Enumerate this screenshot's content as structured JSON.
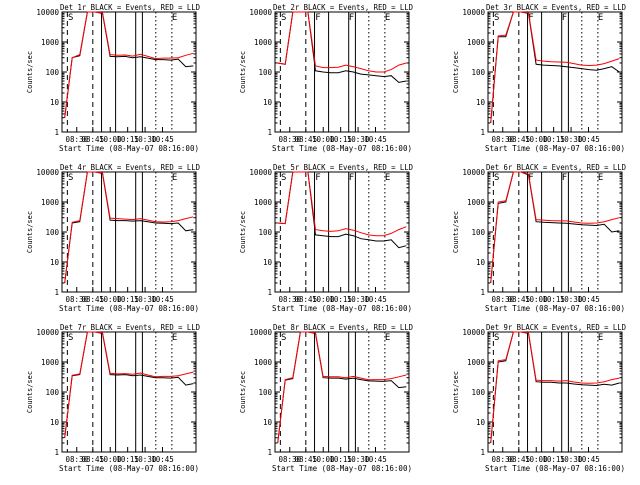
{
  "figure": {
    "panel_suffix": "BLACK = Events, RED = LLD",
    "ylabel": "Counts/sec",
    "xlabel": "Start Time (08-May-07 08:16:00)",
    "yticks": [
      "1",
      "10",
      "100",
      "1000",
      "10000"
    ],
    "xticks": [
      "08:30",
      "08:45",
      "10:00",
      "10:15",
      "10:30",
      "10:45"
    ]
  },
  "chart_data": [
    {
      "type": "line",
      "title": "Det 1r BLACK = Events, RED = LLD",
      "markers": [
        "S",
        "",
        "",
        "E"
      ],
      "xlabel": "Start Time (08-May-07 08:16:00)",
      "ylabel": "Counts/sec",
      "yscale": "log",
      "ylim": [
        1,
        10000
      ],
      "xticks": [
        "08:30",
        "08:45",
        "10:00",
        "10:15",
        "10:30",
        "10:45"
      ],
      "series": [
        {
          "name": "Events",
          "color": "#000000",
          "values": [
            3,
            300,
            350,
            12000,
            12000,
            9000,
            330,
            320,
            330,
            300,
            320,
            290,
            260,
            260,
            250,
            270,
            150,
            160
          ]
        },
        {
          "name": "LLD",
          "color": "#ff0000",
          "values": [
            3,
            300,
            380,
            12000,
            12000,
            9500,
            380,
            360,
            370,
            340,
            390,
            330,
            280,
            290,
            290,
            300,
            360,
            420
          ]
        }
      ]
    },
    {
      "type": "line",
      "title": "Det 2r BLACK = Events, RED = LLD",
      "markers": [
        "S",
        "F",
        "F",
        "E"
      ],
      "xlabel": "Start Time (08-May-07 08:16:00)",
      "ylabel": "Counts/sec",
      "yscale": "log",
      "ylim": [
        1,
        10000
      ],
      "xticks": [
        "08:30",
        "08:45",
        "10:00",
        "10:15",
        "10:30",
        "10:45"
      ],
      "series": [
        {
          "name": "Events",
          "color": "#000000",
          "values": [
            200,
            180,
            12000,
            12000,
            11000,
            110,
            100,
            95,
            95,
            110,
            100,
            85,
            80,
            75,
            70,
            75,
            45,
            50
          ]
        },
        {
          "name": "LLD",
          "color": "#ff0000",
          "values": [
            200,
            180,
            12000,
            12000,
            11000,
            160,
            140,
            140,
            145,
            170,
            150,
            130,
            110,
            100,
            100,
            120,
            170,
            200
          ]
        }
      ]
    },
    {
      "type": "line",
      "title": "Det 3r BLACK = Events, RED = LLD",
      "markers": [
        "S",
        "F",
        "F",
        "E"
      ],
      "xlabel": "Start Time (08-May-07 08:16:00)",
      "ylabel": "Counts/sec",
      "yscale": "log",
      "ylim": [
        1,
        10000
      ],
      "xticks": [
        "08:30",
        "08:45",
        "10:00",
        "10:15",
        "10:30",
        "10:45"
      ],
      "series": [
        {
          "name": "Events",
          "color": "#000000",
          "values": [
            2,
            1500,
            1500,
            12000,
            12000,
            9000,
            180,
            170,
            165,
            160,
            150,
            140,
            130,
            120,
            115,
            130,
            150,
            100
          ]
        },
        {
          "name": "LLD",
          "color": "#ff0000",
          "values": [
            2,
            1600,
            1700,
            12000,
            12000,
            9500,
            250,
            230,
            220,
            215,
            210,
            190,
            170,
            165,
            170,
            190,
            230,
            280
          ]
        }
      ]
    },
    {
      "type": "line",
      "title": "Det 4r BLACK = Events, RED = LLD",
      "markers": [
        "S",
        "",
        "",
        "E"
      ],
      "xlabel": "Start Time (08-May-07 08:16:00)",
      "ylabel": "Counts/sec",
      "yscale": "log",
      "ylim": [
        1,
        10000
      ],
      "xticks": [
        "08:30",
        "08:45",
        "10:00",
        "10:15",
        "10:30",
        "10:45"
      ],
      "series": [
        {
          "name": "Events",
          "color": "#000000",
          "values": [
            2,
            200,
            220,
            12000,
            12000,
            9000,
            250,
            240,
            240,
            230,
            240,
            220,
            200,
            195,
            190,
            200,
            110,
            120
          ]
        },
        {
          "name": "LLD",
          "color": "#ff0000",
          "values": [
            2,
            210,
            240,
            12000,
            12000,
            9500,
            290,
            280,
            270,
            260,
            280,
            250,
            220,
            215,
            220,
            240,
            280,
            320
          ]
        }
      ]
    },
    {
      "type": "line",
      "title": "Det 5r BLACK = Events, RED = LLD",
      "markers": [
        "S",
        "F",
        "F",
        "E"
      ],
      "xlabel": "Start Time (08-May-07 08:16:00)",
      "ylabel": "Counts/sec",
      "yscale": "log",
      "ylim": [
        1,
        10000
      ],
      "xticks": [
        "08:30",
        "08:45",
        "10:00",
        "10:15",
        "10:30",
        "10:45"
      ],
      "series": [
        {
          "name": "Events",
          "color": "#000000",
          "values": [
            200,
            190,
            12000,
            12000,
            11000,
            80,
            75,
            70,
            70,
            85,
            75,
            60,
            55,
            50,
            50,
            55,
            30,
            35
          ]
        },
        {
          "name": "LLD",
          "color": "#ff0000",
          "values": [
            200,
            190,
            12000,
            12000,
            11000,
            120,
            110,
            105,
            110,
            130,
            115,
            95,
            80,
            75,
            75,
            90,
            120,
            150
          ]
        }
      ]
    },
    {
      "type": "line",
      "title": "Det 6r BLACK = Events, RED = LLD",
      "markers": [
        "S",
        "F",
        "F",
        "E"
      ],
      "xlabel": "Start Time (08-May-07 08:16:00)",
      "ylabel": "Counts/sec",
      "yscale": "log",
      "ylim": [
        1,
        10000
      ],
      "xticks": [
        "08:30",
        "08:45",
        "10:00",
        "10:15",
        "10:30",
        "10:45"
      ],
      "series": [
        {
          "name": "Events",
          "color": "#000000",
          "values": [
            2,
            900,
            1000,
            12000,
            12000,
            8000,
            220,
            210,
            205,
            200,
            195,
            185,
            175,
            170,
            165,
            180,
            100,
            110
          ]
        },
        {
          "name": "LLD",
          "color": "#ff0000",
          "values": [
            2,
            1000,
            1100,
            12000,
            12000,
            8500,
            260,
            250,
            240,
            235,
            235,
            215,
            200,
            195,
            200,
            220,
            260,
            300
          ]
        }
      ]
    },
    {
      "type": "line",
      "title": "Det 7r BLACK = Events, RED = LLD",
      "markers": [
        "S",
        "",
        "",
        "E"
      ],
      "xlabel": "Start Time (08-May-07 08:16:00)",
      "ylabel": "Counts/sec",
      "yscale": "log",
      "ylim": [
        1,
        10000
      ],
      "xticks": [
        "08:30",
        "08:45",
        "10:00",
        "10:15",
        "10:30",
        "10:45"
      ],
      "series": [
        {
          "name": "Events",
          "color": "#000000",
          "values": [
            3,
            350,
            380,
            12000,
            12000,
            9000,
            380,
            370,
            380,
            350,
            370,
            330,
            300,
            300,
            290,
            310,
            170,
            190
          ]
        },
        {
          "name": "LLD",
          "color": "#ff0000",
          "values": [
            3,
            360,
            400,
            12000,
            12000,
            9500,
            420,
            400,
            410,
            390,
            430,
            370,
            320,
            330,
            330,
            350,
            400,
            460
          ]
        }
      ]
    },
    {
      "type": "line",
      "title": "Det 8r BLACK = Events, RED = LLD",
      "markers": [
        "S",
        "",
        "",
        "E"
      ],
      "xlabel": "Start Time (08-May-07 08:16:00)",
      "ylabel": "Counts/sec",
      "yscale": "log",
      "ylim": [
        1,
        10000
      ],
      "xticks": [
        "08:30",
        "08:45",
        "10:00",
        "10:15",
        "10:30",
        "10:45"
      ],
      "series": [
        {
          "name": "Events",
          "color": "#000000",
          "values": [
            2,
            250,
            280,
            12000,
            12000,
            9000,
            300,
            290,
            290,
            270,
            290,
            260,
            235,
            230,
            225,
            240,
            140,
            150
          ]
        },
        {
          "name": "LLD",
          "color": "#ff0000",
          "values": [
            2,
            260,
            300,
            12000,
            12000,
            9500,
            330,
            320,
            320,
            300,
            330,
            290,
            255,
            260,
            260,
            280,
            320,
            370
          ]
        }
      ]
    },
    {
      "type": "line",
      "title": "Det 9r BLACK = Events, RED = LLD",
      "markers": [
        "S",
        "",
        "",
        "E"
      ],
      "xlabel": "Start Time (08-May-07 08:16:00)",
      "ylabel": "Counts/sec",
      "yscale": "log",
      "ylim": [
        1,
        10000
      ],
      "xticks": [
        "08:30",
        "08:45",
        "10:00",
        "10:15",
        "10:30",
        "10:45"
      ],
      "series": [
        {
          "name": "Events",
          "color": "#000000",
          "values": [
            2,
            1000,
            1100,
            12000,
            12000,
            9000,
            220,
            210,
            210,
            200,
            200,
            185,
            175,
            170,
            165,
            180,
            170,
            200
          ]
        },
        {
          "name": "LLD",
          "color": "#ff0000",
          "values": [
            2,
            1100,
            1200,
            12000,
            12000,
            9500,
            250,
            240,
            240,
            230,
            240,
            215,
            200,
            195,
            200,
            220,
            260,
            290
          ]
        }
      ]
    }
  ]
}
